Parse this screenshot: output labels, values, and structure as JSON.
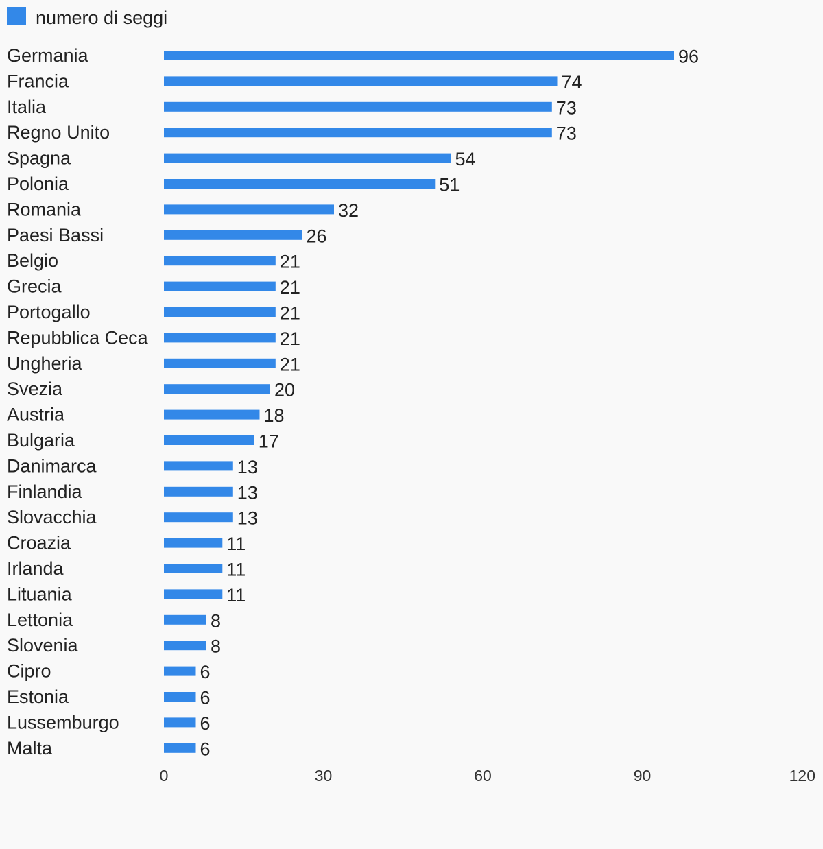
{
  "chart_data": {
    "type": "bar",
    "orientation": "horizontal",
    "series": [
      {
        "name": "numero di seggi",
        "color": "#3388e8",
        "values": [
          96,
          74,
          73,
          73,
          54,
          51,
          32,
          26,
          21,
          21,
          21,
          21,
          21,
          20,
          18,
          17,
          13,
          13,
          13,
          11,
          11,
          11,
          8,
          8,
          6,
          6,
          6,
          6
        ]
      }
    ],
    "categories": [
      "Germania",
      "Francia",
      "Italia",
      "Regno Unito",
      "Spagna",
      "Polonia",
      "Romania",
      "Paesi Bassi",
      "Belgio",
      "Grecia",
      "Portogallo",
      "Repubblica Ceca",
      "Ungheria",
      "Svezia",
      "Austria",
      "Bulgaria",
      "Danimarca",
      "Finlandia",
      "Slovacchia",
      "Croazia",
      "Irlanda",
      "Lituania",
      "Lettonia",
      "Slovenia",
      "Cipro",
      "Estonia",
      "Lussemburgo",
      "Malta"
    ],
    "xlim": [
      0,
      120
    ],
    "xticks": [
      0,
      30,
      60,
      90,
      120
    ],
    "grid": false,
    "legend_position": "top-left",
    "title": "",
    "xlabel": "",
    "ylabel": ""
  }
}
